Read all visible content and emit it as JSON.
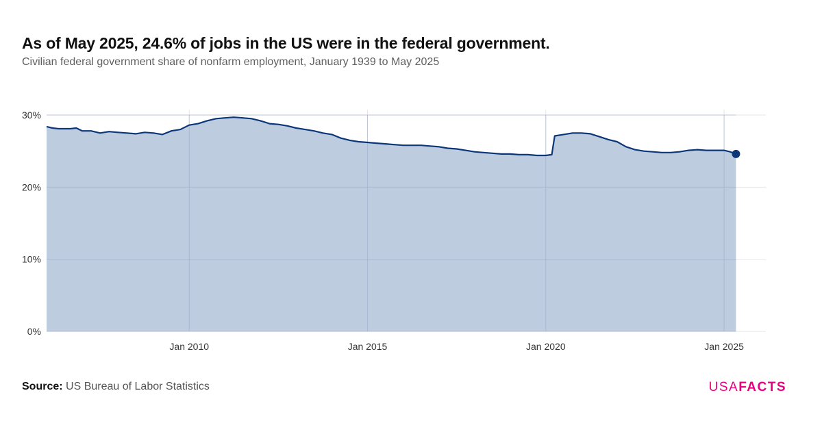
{
  "title": "As of May 2025, 24.6% of jobs in the US were in the federal government.",
  "subtitle": "Civilian federal government share of nonfarm employment, January 1939 to May 2025",
  "source_label": "Source:",
  "source_text": "US Bureau of Labor Statistics",
  "logo": {
    "part1": "USA",
    "part2": "FACTS"
  },
  "colors": {
    "line": "#0b3678",
    "area": "#b3c3d9",
    "grid": "#e6e6e6",
    "brand": "#e6007e"
  },
  "chart_data": {
    "type": "area",
    "title": "As of May 2025, 24.6% of jobs in the US were in the federal government.",
    "subtitle": "Civilian federal government share of nonfarm employment, January 1939 to May 2025",
    "xlabel": "",
    "ylabel": "",
    "ylim": [
      0,
      30
    ],
    "yticks": [
      0,
      10,
      20,
      30
    ],
    "ytick_labels": [
      "0%",
      "10%",
      "20%",
      "30%"
    ],
    "xticks": [
      "2010-01",
      "2015-01",
      "2020-01",
      "2025-01"
    ],
    "xtick_labels": [
      "Jan 2010",
      "Jan 2015",
      "Jan 2020",
      "Jan 2025"
    ],
    "grid": true,
    "legend": "none",
    "last_point_marker": true,
    "series": [
      {
        "points": [
          [
            "2006-01",
            28.4
          ],
          [
            "2006-03",
            28.2
          ],
          [
            "2006-05",
            28.1
          ],
          [
            "2006-07",
            28.1
          ],
          [
            "2006-09",
            28.1
          ],
          [
            "2006-11",
            28.2
          ],
          [
            "2007-01",
            27.8
          ],
          [
            "2007-04",
            27.8
          ],
          [
            "2007-07",
            27.5
          ],
          [
            "2007-10",
            27.7
          ],
          [
            "2008-01",
            27.6
          ],
          [
            "2008-04",
            27.5
          ],
          [
            "2008-07",
            27.4
          ],
          [
            "2008-10",
            27.6
          ],
          [
            "2009-01",
            27.5
          ],
          [
            "2009-04",
            27.3
          ],
          [
            "2009-07",
            27.8
          ],
          [
            "2009-10",
            28.0
          ],
          [
            "2010-01",
            28.6
          ],
          [
            "2010-04",
            28.8
          ],
          [
            "2010-07",
            29.2
          ],
          [
            "2010-10",
            29.5
          ],
          [
            "2011-01",
            29.6
          ],
          [
            "2011-04",
            29.7
          ],
          [
            "2011-07",
            29.6
          ],
          [
            "2011-10",
            29.5
          ],
          [
            "2012-01",
            29.2
          ],
          [
            "2012-04",
            28.8
          ],
          [
            "2012-07",
            28.7
          ],
          [
            "2012-10",
            28.5
          ],
          [
            "2013-01",
            28.2
          ],
          [
            "2013-04",
            28.0
          ],
          [
            "2013-07",
            27.8
          ],
          [
            "2013-10",
            27.5
          ],
          [
            "2014-01",
            27.3
          ],
          [
            "2014-04",
            26.8
          ],
          [
            "2014-07",
            26.5
          ],
          [
            "2014-10",
            26.3
          ],
          [
            "2015-01",
            26.2
          ],
          [
            "2015-04",
            26.1
          ],
          [
            "2015-07",
            26.0
          ],
          [
            "2015-10",
            25.9
          ],
          [
            "2016-01",
            25.8
          ],
          [
            "2016-04",
            25.8
          ],
          [
            "2016-07",
            25.8
          ],
          [
            "2016-10",
            25.7
          ],
          [
            "2017-01",
            25.6
          ],
          [
            "2017-04",
            25.4
          ],
          [
            "2017-07",
            25.3
          ],
          [
            "2017-10",
            25.1
          ],
          [
            "2018-01",
            24.9
          ],
          [
            "2018-04",
            24.8
          ],
          [
            "2018-07",
            24.7
          ],
          [
            "2018-10",
            24.6
          ],
          [
            "2019-01",
            24.6
          ],
          [
            "2019-04",
            24.5
          ],
          [
            "2019-07",
            24.5
          ],
          [
            "2019-10",
            24.4
          ],
          [
            "2020-01",
            24.4
          ],
          [
            "2020-03",
            24.5
          ],
          [
            "2020-04",
            27.1
          ],
          [
            "2020-07",
            27.3
          ],
          [
            "2020-10",
            27.5
          ],
          [
            "2021-01",
            27.5
          ],
          [
            "2021-04",
            27.4
          ],
          [
            "2021-07",
            27.0
          ],
          [
            "2021-10",
            26.6
          ],
          [
            "2022-01",
            26.3
          ],
          [
            "2022-04",
            25.6
          ],
          [
            "2022-07",
            25.2
          ],
          [
            "2022-10",
            25.0
          ],
          [
            "2023-01",
            24.9
          ],
          [
            "2023-04",
            24.8
          ],
          [
            "2023-07",
            24.8
          ],
          [
            "2023-10",
            24.9
          ],
          [
            "2024-01",
            25.1
          ],
          [
            "2024-04",
            25.2
          ],
          [
            "2024-07",
            25.1
          ],
          [
            "2024-10",
            25.1
          ],
          [
            "2025-01",
            25.1
          ],
          [
            "2025-03",
            24.9
          ],
          [
            "2025-05",
            24.6
          ]
        ]
      }
    ]
  }
}
